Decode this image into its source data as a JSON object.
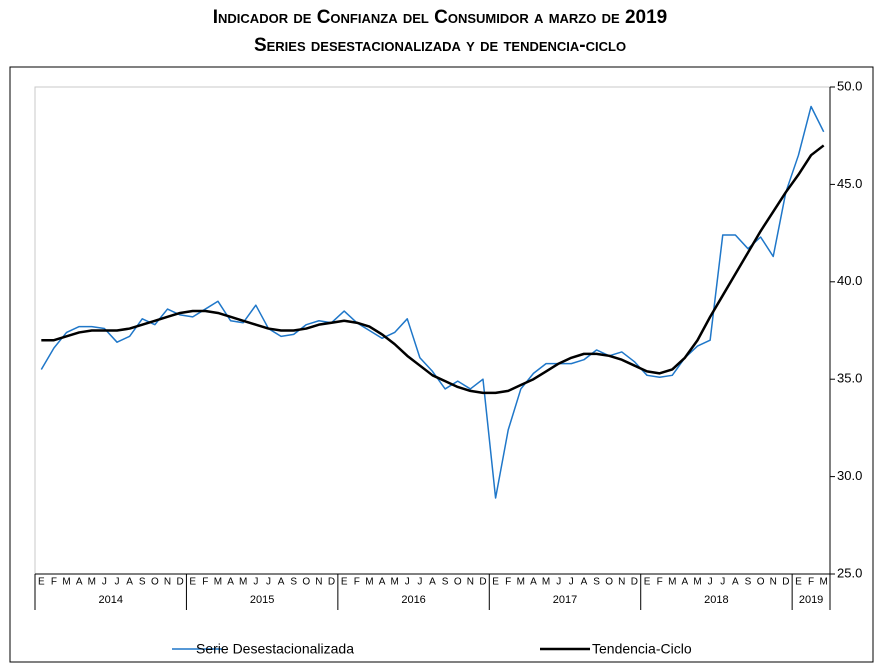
{
  "chart_data": {
    "type": "line",
    "title": "Indicador de Confianza del Consumidor a marzo de 2019",
    "subtitle": "Series desestacionalizada y de tendencia-ciclo",
    "categories": [
      "E",
      "F",
      "M",
      "A",
      "M",
      "J",
      "J",
      "A",
      "S",
      "O",
      "N",
      "D",
      "E",
      "F",
      "M",
      "A",
      "M",
      "J",
      "J",
      "A",
      "S",
      "O",
      "N",
      "D",
      "E",
      "F",
      "M",
      "A",
      "M",
      "J",
      "J",
      "A",
      "S",
      "O",
      "N",
      "D",
      "E",
      "F",
      "M",
      "A",
      "M",
      "J",
      "J",
      "A",
      "S",
      "O",
      "N",
      "D",
      "E",
      "F",
      "M",
      "A",
      "M",
      "J",
      "J",
      "A",
      "S",
      "O",
      "N",
      "D",
      "E",
      "F",
      "M"
    ],
    "years": [
      "2014",
      "2015",
      "2016",
      "2017",
      "2018",
      "2019"
    ],
    "series": [
      {
        "name": "Serie Desestacionalizada",
        "color": "#1f77c9",
        "width": 1.5,
        "values": [
          35.5,
          36.6,
          37.4,
          37.7,
          37.7,
          37.6,
          36.9,
          37.2,
          38.1,
          37.8,
          38.6,
          38.3,
          38.2,
          38.6,
          39.0,
          38.0,
          37.9,
          38.8,
          37.6,
          37.2,
          37.3,
          37.8,
          38.0,
          37.9,
          38.5,
          37.9,
          37.5,
          37.1,
          37.4,
          38.1,
          36.1,
          35.4,
          34.5,
          34.9,
          34.5,
          35.0,
          28.9,
          32.4,
          34.5,
          35.3,
          35.8,
          35.8,
          35.8,
          36.0,
          36.5,
          36.2,
          36.4,
          35.9,
          35.2,
          35.1,
          35.2,
          36.1,
          36.7,
          37.0,
          42.4,
          42.4,
          41.7,
          42.3,
          41.3,
          44.6,
          46.5,
          49.0,
          47.7
        ]
      },
      {
        "name": "Tendencia-Ciclo",
        "color": "#000000",
        "width": 2.5,
        "values": [
          37.0,
          37.0,
          37.2,
          37.4,
          37.5,
          37.5,
          37.5,
          37.6,
          37.8,
          38.0,
          38.2,
          38.4,
          38.5,
          38.5,
          38.4,
          38.2,
          38.0,
          37.8,
          37.6,
          37.5,
          37.5,
          37.6,
          37.8,
          37.9,
          38.0,
          37.9,
          37.7,
          37.3,
          36.8,
          36.2,
          35.7,
          35.2,
          34.9,
          34.6,
          34.4,
          34.3,
          34.3,
          34.4,
          34.7,
          35.0,
          35.4,
          35.8,
          36.1,
          36.3,
          36.3,
          36.2,
          36.0,
          35.7,
          35.4,
          35.3,
          35.5,
          36.1,
          37.0,
          38.2,
          39.3,
          40.4,
          41.5,
          42.6,
          43.6,
          44.6,
          45.5,
          46.5,
          47.0
        ]
      }
    ],
    "ylim": [
      25,
      50
    ],
    "yticks": [
      {
        "value": 25,
        "label": "25.0"
      },
      {
        "value": 30,
        "label": "30.0"
      },
      {
        "value": 35,
        "label": "35.0"
      },
      {
        "value": 40,
        "label": "40.0"
      },
      {
        "value": 45,
        "label": "45.0"
      },
      {
        "value": 50,
        "label": "50.0"
      }
    ],
    "grid": false
  }
}
